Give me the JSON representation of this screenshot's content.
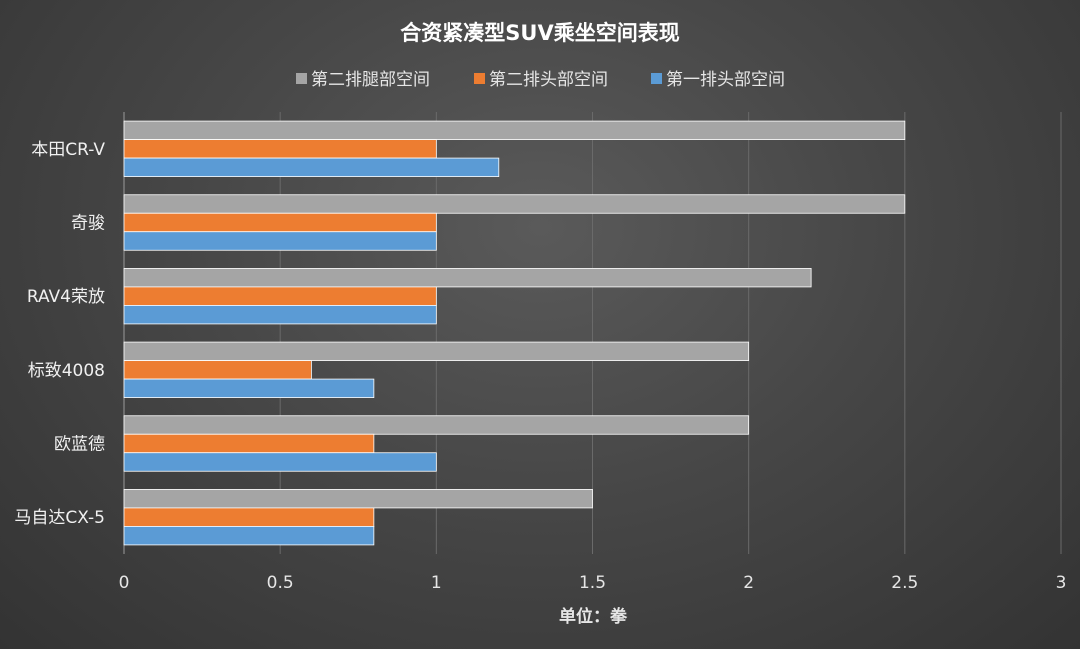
{
  "chart_data": {
    "type": "bar",
    "orientation": "horizontal",
    "title": "合资紧凑型SUV乘坐空间表现",
    "xlabel": "单位：拳",
    "ylabel": "",
    "xlim": [
      0,
      3
    ],
    "xticks": [
      "0",
      "0.5",
      "1",
      "1.5",
      "2",
      "2.5",
      "3"
    ],
    "xtick_values": [
      0,
      0.5,
      1,
      1.5,
      2,
      2.5,
      3
    ],
    "grid": true,
    "legend_position": "top",
    "categories": [
      "本田CR-V",
      "奇骏",
      "RAV4荣放",
      "标致4008",
      "欧蓝德",
      "马自达CX-5"
    ],
    "series": [
      {
        "name": "第二排腿部空间",
        "color": "#a5a5a5",
        "values": [
          2.5,
          2.5,
          2.2,
          2.0,
          2.0,
          1.5
        ]
      },
      {
        "name": "第二排头部空间",
        "color": "#ed7d31",
        "values": [
          1.0,
          1.0,
          1.0,
          0.6,
          0.8,
          0.8
        ]
      },
      {
        "name": "第一排头部空间",
        "color": "#5b9bd5",
        "values": [
          1.2,
          1.0,
          1.0,
          0.8,
          1.0,
          0.8
        ]
      }
    ]
  }
}
